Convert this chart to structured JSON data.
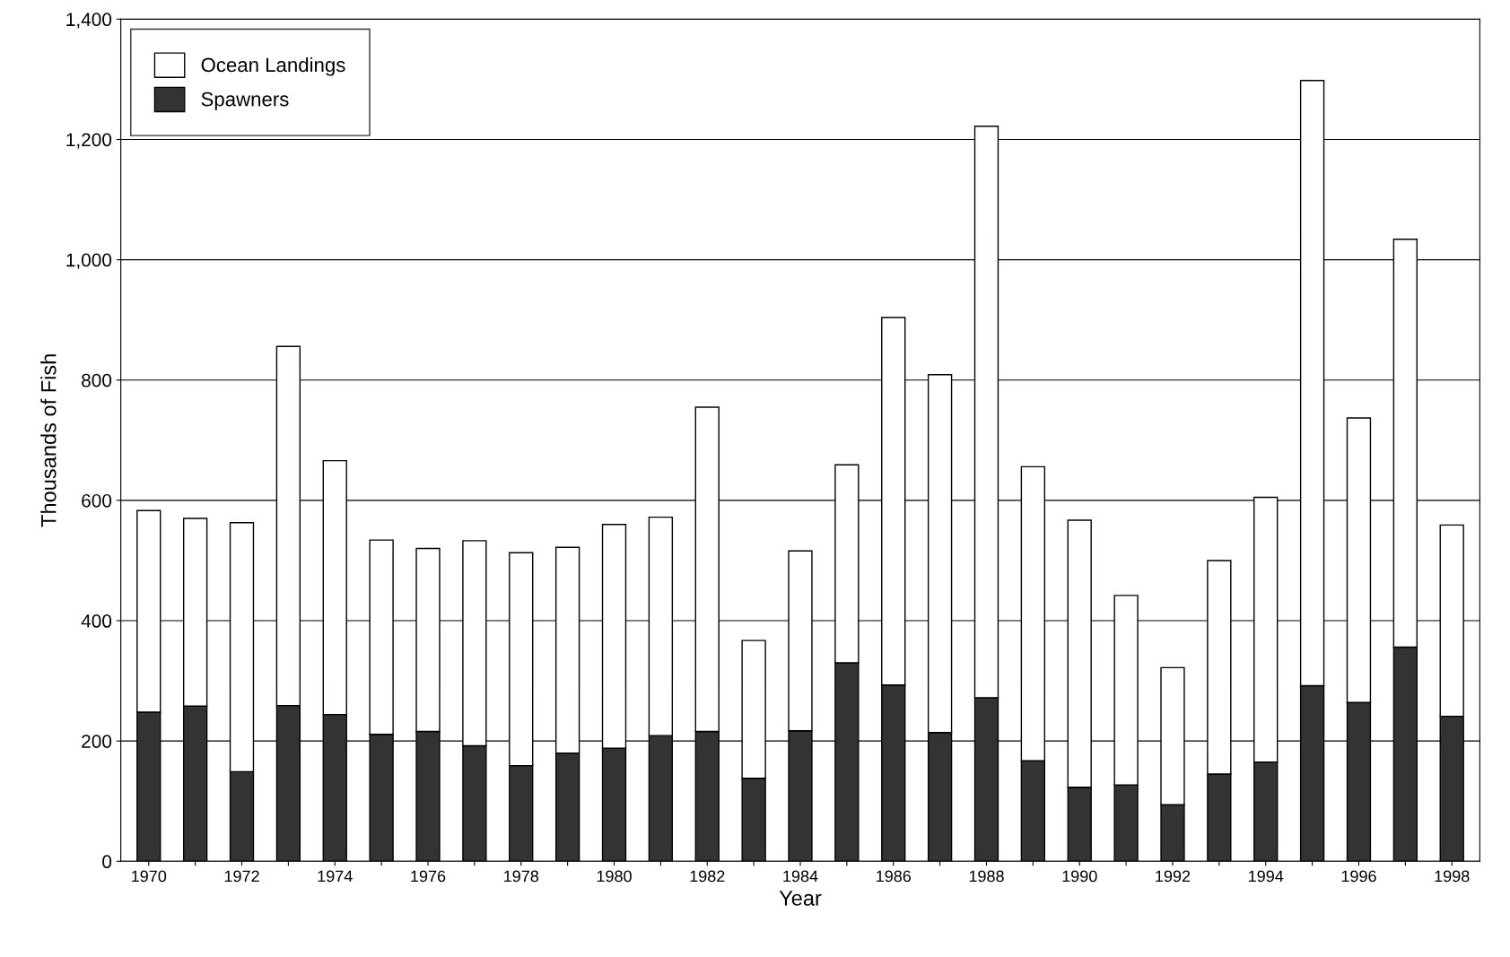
{
  "chart_data": {
    "type": "bar",
    "stacked": true,
    "xlabel": "Year",
    "ylabel": "Thousands of Fish",
    "categories": [
      "1970",
      null,
      "1972",
      null,
      "1974",
      null,
      "1976",
      null,
      "1978",
      null,
      "1980",
      null,
      "1982",
      null,
      "1984",
      null,
      "1986",
      null,
      "1988",
      null,
      "1990",
      null,
      "1992",
      null,
      "1994",
      null,
      "1996",
      null,
      "1998"
    ],
    "series": [
      {
        "name": "Spawners",
        "color": "#333333",
        "values": [
          248,
          258,
          149,
          259,
          244,
          211,
          216,
          192,
          159,
          180,
          188,
          209,
          216,
          138,
          217,
          330,
          293,
          214,
          272,
          167,
          123,
          127,
          94,
          145,
          165,
          292,
          264,
          356,
          241
        ]
      },
      {
        "name": "Ocean Landings",
        "color": "#ffffff",
        "values": [
          335,
          312,
          414,
          597,
          422,
          323,
          304,
          341,
          354,
          342,
          372,
          363,
          539,
          229,
          299,
          329,
          611,
          595,
          950,
          489,
          444,
          315,
          228,
          355,
          440,
          1006,
          473,
          678,
          318
        ]
      }
    ],
    "ylim": [
      0,
      1400
    ],
    "yticks": [
      0,
      200,
      400,
      600,
      800,
      {
        "value": 1000,
        "label": "1,000"
      },
      {
        "value": 1200,
        "label": "1,200"
      },
      {
        "value": 1400,
        "label": "1,400"
      }
    ],
    "grid": "y",
    "legend": "top left"
  }
}
